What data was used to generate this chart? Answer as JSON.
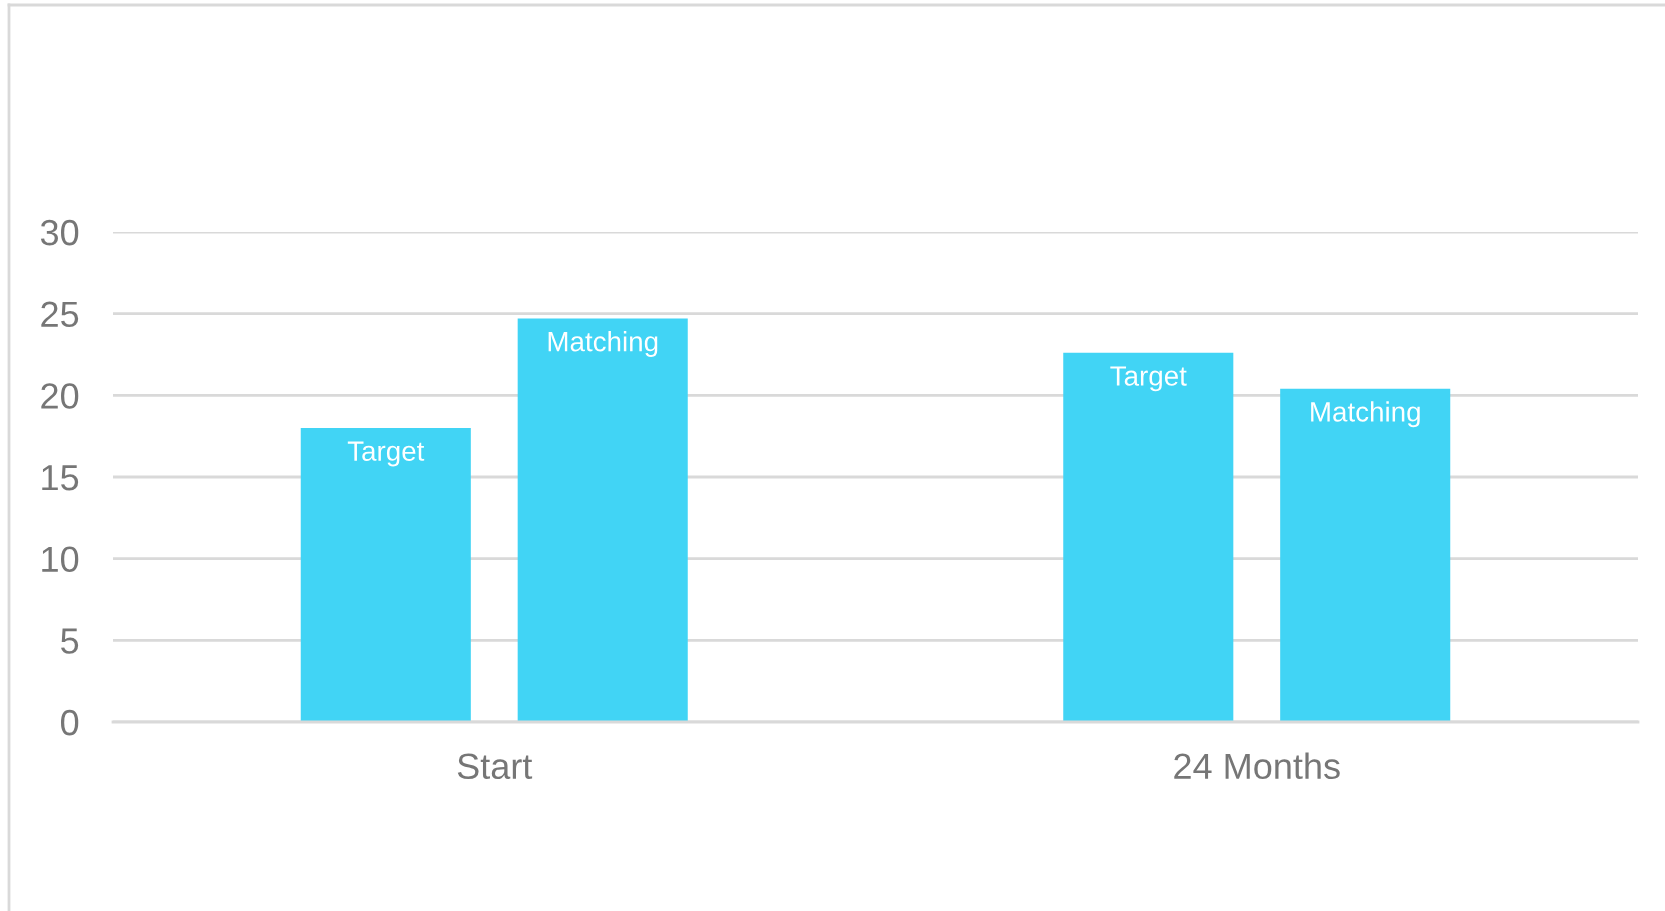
{
  "chart_data": {
    "type": "bar",
    "categories": [
      "Start",
      "24 Months"
    ],
    "series": [
      {
        "name": "Target",
        "color": "#41d4f5",
        "values": [
          18.0,
          22.6
        ]
      },
      {
        "name": "Matching",
        "color": "#41d4f5",
        "values": [
          24.7,
          20.4
        ]
      }
    ],
    "ylim": [
      0,
      30
    ],
    "yticks": [
      0,
      5,
      10,
      15,
      20,
      25,
      30
    ],
    "grid": "y"
  }
}
